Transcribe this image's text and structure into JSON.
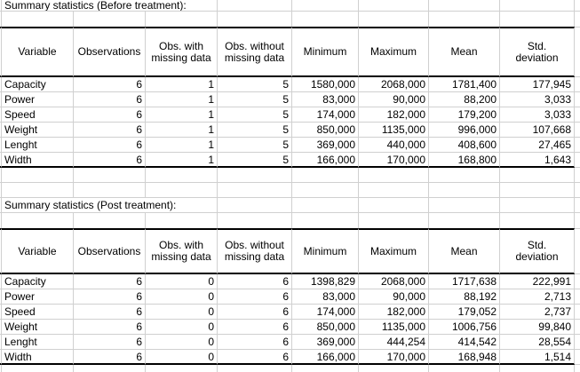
{
  "styles": {
    "background": "#ffffff",
    "gridline_color": "#d0d0d0",
    "table_border_color": "#000000",
    "text_color": "#000000"
  },
  "before": {
    "title": "Summary statistics (Before treatment):",
    "headers": {
      "variable": "Variable",
      "observations": "Observations",
      "obs_with": "Obs. with\nmissing data",
      "obs_without": "Obs. without\nmissing data",
      "minimum": "Minimum",
      "maximum": "Maximum",
      "mean": "Mean",
      "std": "Std.\ndeviation"
    },
    "rows": [
      {
        "variable": "Capacity",
        "observations": "6",
        "obs_with": "1",
        "obs_without": "5",
        "minimum": "1580,000",
        "maximum": "2068,000",
        "mean": "1781,400",
        "std": "177,945"
      },
      {
        "variable": "Power",
        "observations": "6",
        "obs_with": "1",
        "obs_without": "5",
        "minimum": "83,000",
        "maximum": "90,000",
        "mean": "88,200",
        "std": "3,033"
      },
      {
        "variable": "Speed",
        "observations": "6",
        "obs_with": "1",
        "obs_without": "5",
        "minimum": "174,000",
        "maximum": "182,000",
        "mean": "179,200",
        "std": "3,033"
      },
      {
        "variable": "Weight",
        "observations": "6",
        "obs_with": "1",
        "obs_without": "5",
        "minimum": "850,000",
        "maximum": "1135,000",
        "mean": "996,000",
        "std": "107,668"
      },
      {
        "variable": "Lenght",
        "observations": "6",
        "obs_with": "1",
        "obs_without": "5",
        "minimum": "369,000",
        "maximum": "440,000",
        "mean": "408,600",
        "std": "27,465"
      },
      {
        "variable": "Width",
        "observations": "6",
        "obs_with": "1",
        "obs_without": "5",
        "minimum": "166,000",
        "maximum": "170,000",
        "mean": "168,800",
        "std": "1,643"
      }
    ]
  },
  "post": {
    "title": "Summary statistics (Post treatment):",
    "headers": {
      "variable": "Variable",
      "observations": "Observations",
      "obs_with": "Obs. with\nmissing data",
      "obs_without": "Obs. without\nmissing data",
      "minimum": "Minimum",
      "maximum": "Maximum",
      "mean": "Mean",
      "std": "Std.\ndeviation"
    },
    "rows": [
      {
        "variable": "Capacity",
        "observations": "6",
        "obs_with": "0",
        "obs_without": "6",
        "minimum": "1398,829",
        "maximum": "2068,000",
        "mean": "1717,638",
        "std": "222,991"
      },
      {
        "variable": "Power",
        "observations": "6",
        "obs_with": "0",
        "obs_without": "6",
        "minimum": "83,000",
        "maximum": "90,000",
        "mean": "88,192",
        "std": "2,713"
      },
      {
        "variable": "Speed",
        "observations": "6",
        "obs_with": "0",
        "obs_without": "6",
        "minimum": "174,000",
        "maximum": "182,000",
        "mean": "179,052",
        "std": "2,737"
      },
      {
        "variable": "Weight",
        "observations": "6",
        "obs_with": "0",
        "obs_without": "6",
        "minimum": "850,000",
        "maximum": "1135,000",
        "mean": "1006,756",
        "std": "99,840"
      },
      {
        "variable": "Lenght",
        "observations": "6",
        "obs_with": "0",
        "obs_without": "6",
        "minimum": "369,000",
        "maximum": "444,254",
        "mean": "414,542",
        "std": "28,554"
      },
      {
        "variable": "Width",
        "observations": "6",
        "obs_with": "0",
        "obs_without": "6",
        "minimum": "166,000",
        "maximum": "170,000",
        "mean": "168,948",
        "std": "1,514"
      }
    ]
  }
}
